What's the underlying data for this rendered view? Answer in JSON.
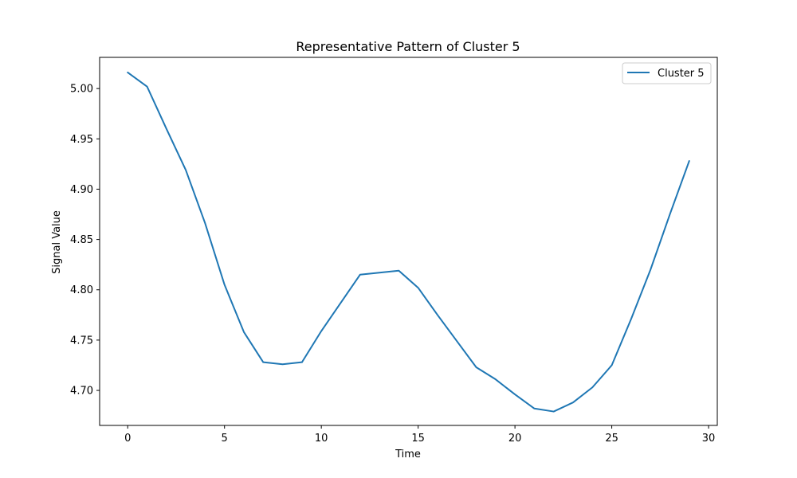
{
  "chart_data": {
    "type": "line",
    "title": "Representative Pattern of Cluster 5",
    "xlabel": "Time",
    "ylabel": "Signal Value",
    "xlim": [
      -1.45,
      30.45
    ],
    "ylim": [
      4.6652,
      5.031
    ],
    "xticks": [
      0,
      5,
      10,
      15,
      20,
      25,
      30
    ],
    "xtick_labels": [
      "0",
      "5",
      "10",
      "15",
      "20",
      "25",
      "30"
    ],
    "yticks": [
      4.7,
      4.75,
      4.8,
      4.85,
      4.9,
      4.95,
      5.0
    ],
    "ytick_labels": [
      "4.70",
      "4.75",
      "4.80",
      "4.85",
      "4.90",
      "4.95",
      "5.00"
    ],
    "grid": false,
    "legend_position": "top-right",
    "series": [
      {
        "name": "Cluster 5",
        "color": "#1f77b4",
        "x": [
          0,
          1,
          2,
          3,
          4,
          5,
          6,
          7,
          8,
          9,
          10,
          11,
          12,
          13,
          14,
          15,
          16,
          17,
          18,
          19,
          20,
          21,
          22,
          23,
          24,
          25,
          26,
          27,
          28,
          29
        ],
        "y": [
          5.016,
          5.002,
          4.96,
          4.919,
          4.866,
          4.805,
          4.758,
          4.728,
          4.726,
          4.728,
          4.759,
          4.787,
          4.815,
          4.817,
          4.819,
          4.802,
          4.775,
          4.749,
          4.723,
          4.711,
          4.696,
          4.682,
          4.679,
          4.688,
          4.703,
          4.725,
          4.771,
          4.82,
          4.875,
          4.928
        ]
      }
    ]
  }
}
